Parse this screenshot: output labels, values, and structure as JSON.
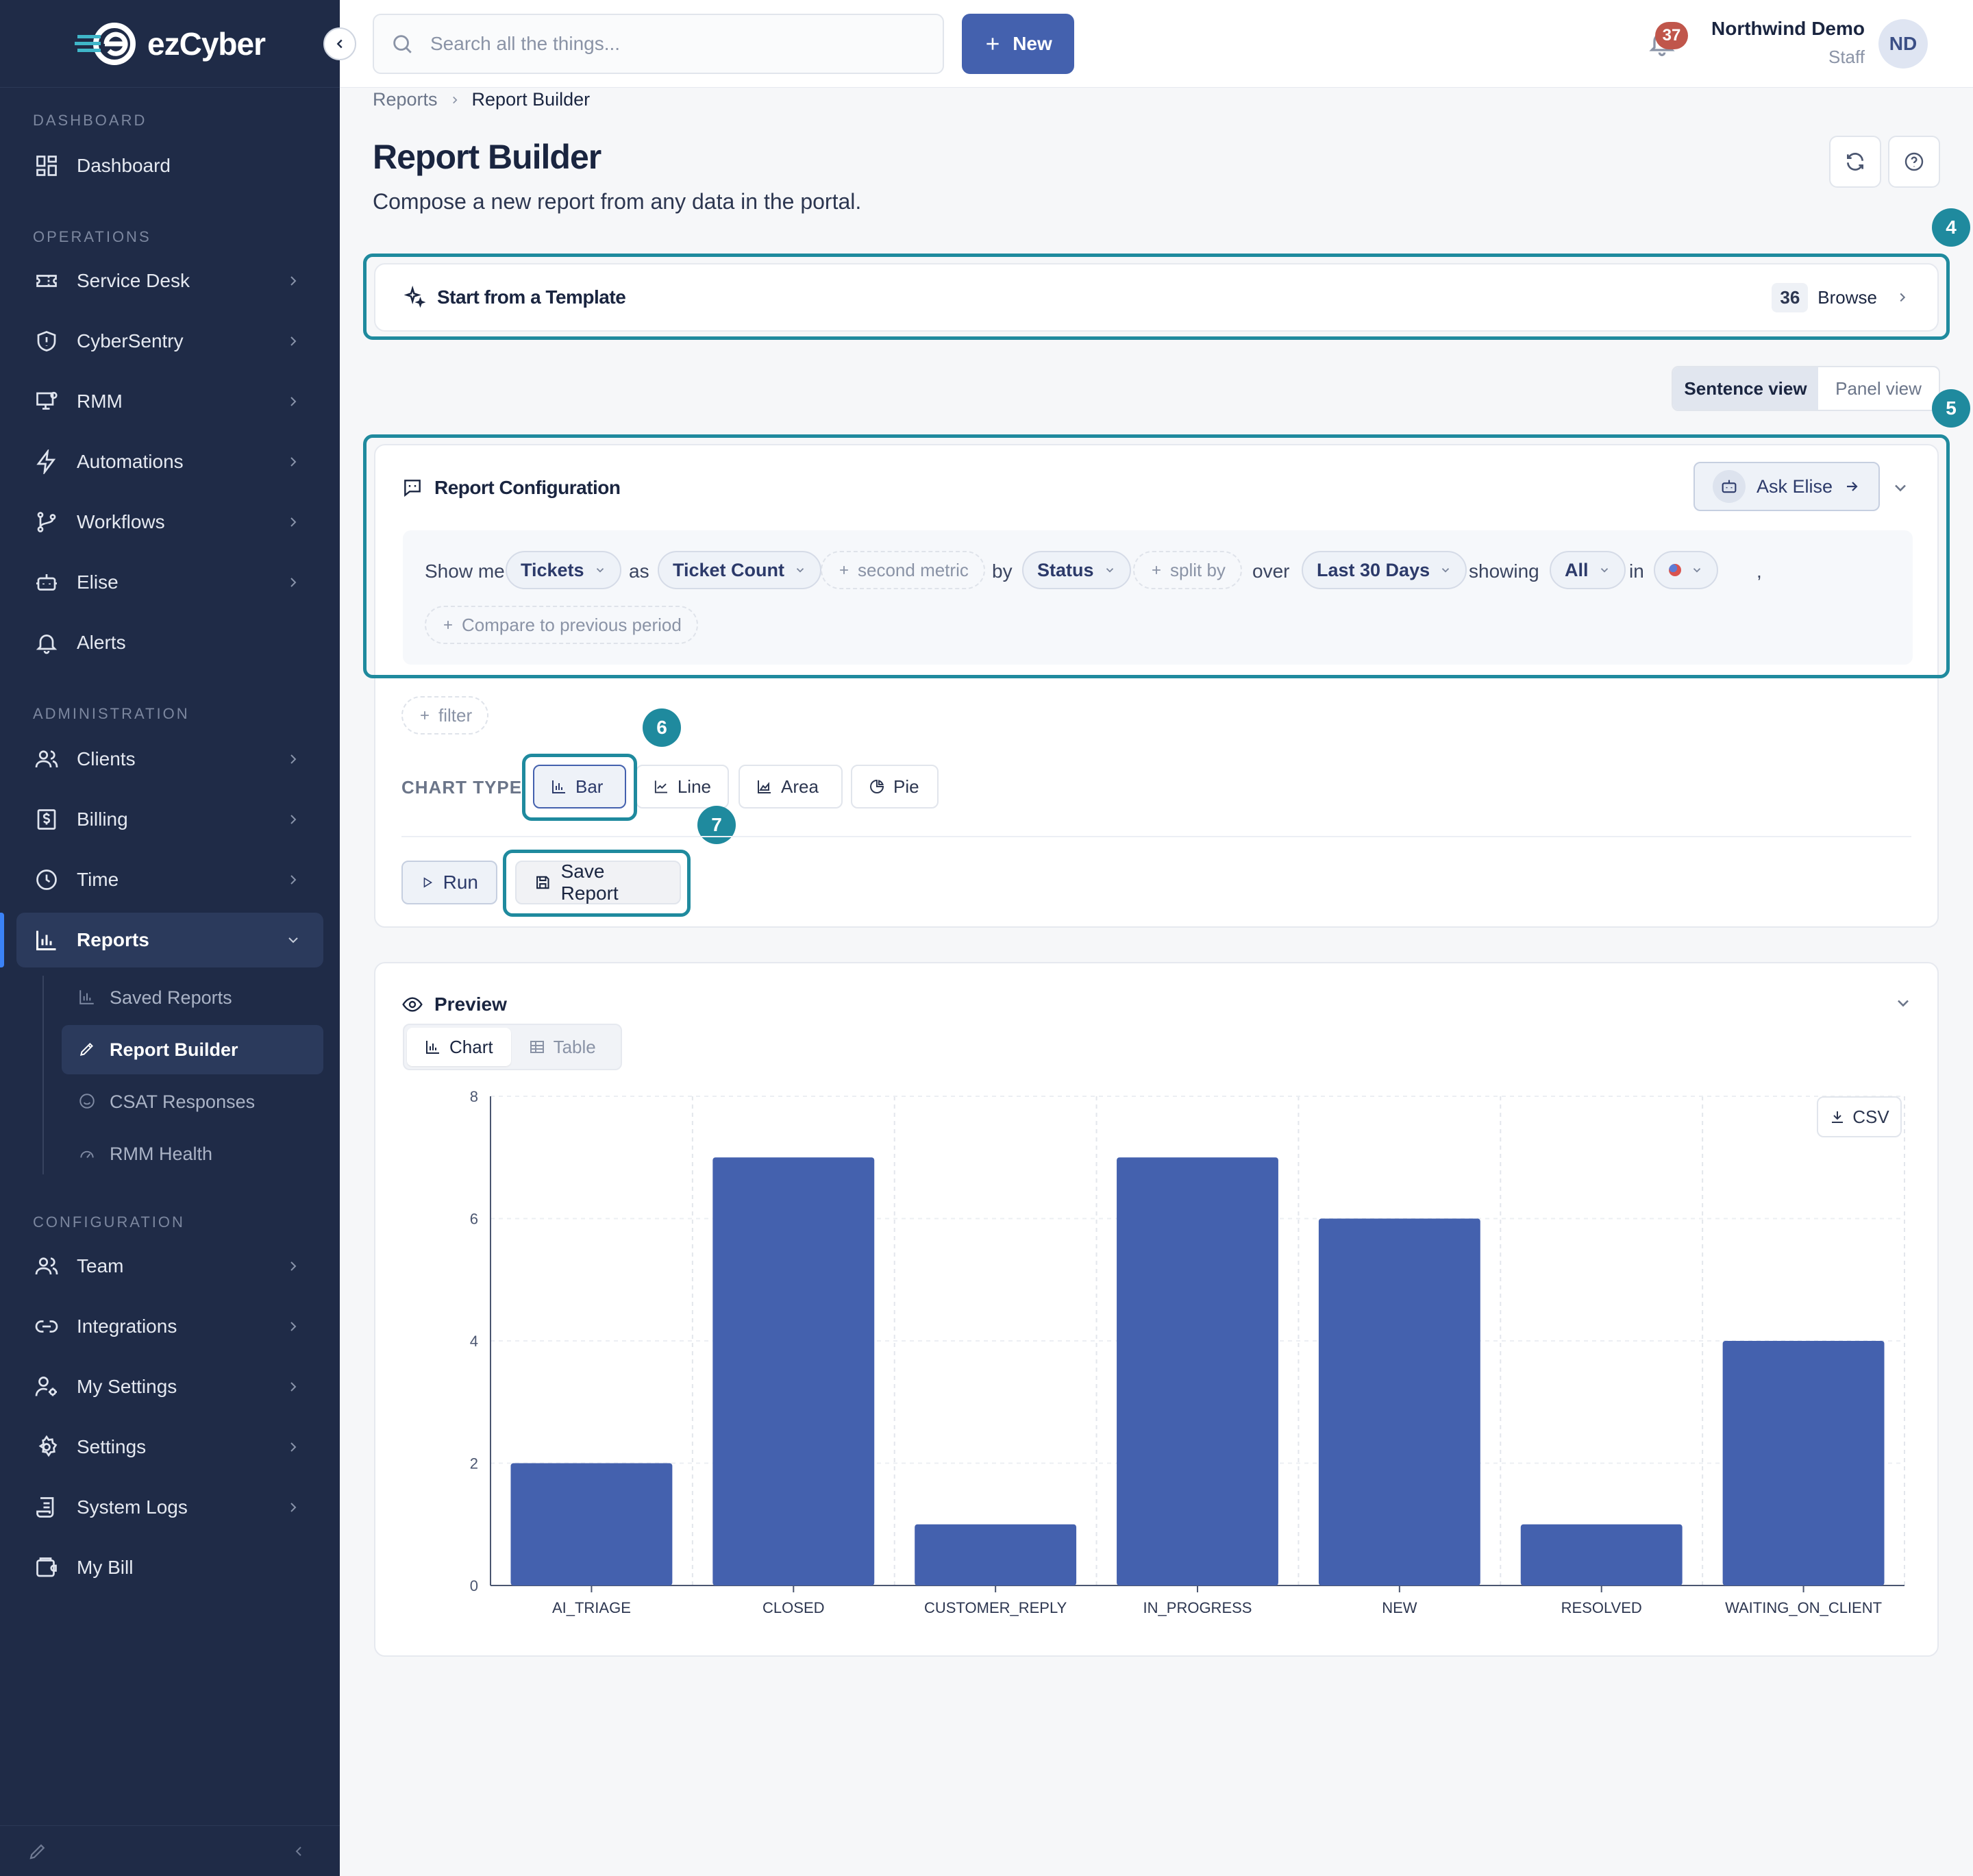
{
  "app": {
    "logo_text": "ezCyber"
  },
  "sidebar": {
    "sections": [
      "DASHBOARD",
      "OPERATIONS",
      "ADMINISTRATION",
      "CONFIGURATION"
    ],
    "items": [
      {
        "label": "Dashboard"
      },
      {
        "label": "Service Desk"
      },
      {
        "label": "CyberSentry"
      },
      {
        "label": "RMM"
      },
      {
        "label": "Automations"
      },
      {
        "label": "Workflows"
      },
      {
        "label": "Elise"
      },
      {
        "label": "Alerts"
      },
      {
        "label": "Clients"
      },
      {
        "label": "Billing"
      },
      {
        "label": "Time"
      },
      {
        "label": "Reports"
      },
      {
        "label": "Team"
      },
      {
        "label": "Integrations"
      },
      {
        "label": "My Settings"
      },
      {
        "label": "Settings"
      },
      {
        "label": "System Logs"
      },
      {
        "label": "My Bill"
      }
    ],
    "reports_sub": [
      {
        "label": "Saved Reports"
      },
      {
        "label": "Report Builder"
      },
      {
        "label": "CSAT Responses"
      },
      {
        "label": "RMM Health"
      }
    ]
  },
  "header": {
    "search_placeholder": "Search all the things...",
    "new_label": "New",
    "notification_count": "37",
    "org_name": "Northwind Demo",
    "org_role": "Staff",
    "avatar_initials": "ND"
  },
  "breadcrumb": {
    "parent": "Reports",
    "current": "Report Builder"
  },
  "page": {
    "title": "Report Builder",
    "subtitle": "Compose a new report from any data in the portal."
  },
  "markers": [
    "4",
    "5",
    "6",
    "7"
  ],
  "template": {
    "title": "Start from a Template",
    "count": "36",
    "browse_label": "Browse"
  },
  "view_toggle": {
    "sentence": "Sentence view",
    "panel": "Panel view",
    "selected": "Sentence view"
  },
  "config": {
    "title": "Report Configuration",
    "ask_elise": "Ask Elise",
    "sentence": {
      "show_me": "Show me",
      "entity": "Tickets",
      "as": "as",
      "metric": "Ticket Count",
      "second_metric": "second metric",
      "by": "by",
      "group_by": "Status",
      "split_by": "split by",
      "over": "over",
      "period": "Last 30 Days",
      "showing": "showing",
      "showing_value": "All",
      "in": "in",
      "comma": ",",
      "compare": "Compare to previous period"
    },
    "filter_label": "filter",
    "chart_type_label": "CHART TYPE",
    "chart_types": [
      "Bar",
      "Line",
      "Area",
      "Pie"
    ],
    "selected_chart_type": "Bar",
    "run_label": "Run",
    "save_label": "Save Report"
  },
  "preview": {
    "title": "Preview",
    "tabs": [
      "Chart",
      "Table"
    ],
    "selected_tab": "Chart",
    "csv_label": "CSV"
  },
  "chart_data": {
    "type": "bar",
    "categories": [
      "AI_TRIAGE",
      "CLOSED",
      "CUSTOMER_REPLY",
      "IN_PROGRESS",
      "NEW",
      "RESOLVED",
      "WAITING_ON_CLIENT"
    ],
    "values": [
      2,
      7,
      1,
      7,
      6,
      1,
      4
    ],
    "ylim": [
      0,
      8
    ],
    "yticks": [
      0,
      2,
      4,
      6,
      8
    ],
    "grid": true,
    "color": "#4461ae"
  },
  "colors": {
    "sidebar_bg": "#1f2b47",
    "accent": "#4461ae",
    "highlight": "#1f8a9e",
    "badge": "#c0564b"
  }
}
